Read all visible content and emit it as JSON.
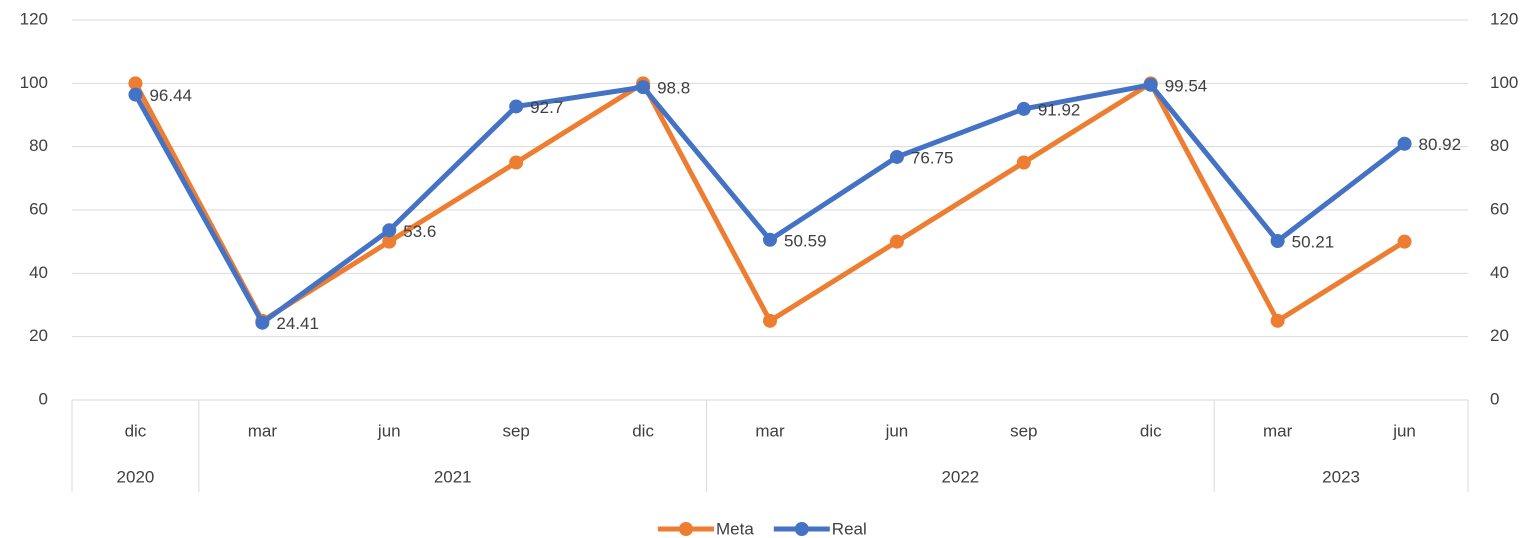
{
  "chart_data": {
    "type": "line",
    "categories": [
      "dic",
      "mar",
      "jun",
      "sep",
      "dic",
      "mar",
      "jun",
      "sep",
      "dic",
      "mar",
      "jun"
    ],
    "groups": [
      {
        "name": "2020",
        "count": 1
      },
      {
        "name": "2021",
        "count": 4
      },
      {
        "name": "2022",
        "count": 4
      },
      {
        "name": "2023",
        "count": 2
      }
    ],
    "series": [
      {
        "name": "Meta",
        "color": "#ed7d31",
        "values": [
          100,
          25,
          50,
          75,
          100,
          25,
          50,
          75,
          100,
          25,
          50
        ]
      },
      {
        "name": "Real",
        "color": "#4472c4",
        "values": [
          96.44,
          24.41,
          53.6,
          92.7,
          98.8,
          50.59,
          76.75,
          91.92,
          99.54,
          50.21,
          80.92
        ],
        "data_labels": true
      }
    ],
    "ylim": [
      0,
      120
    ],
    "yticks": [
      0,
      20,
      40,
      60,
      80,
      100,
      120
    ],
    "y2lim": [
      0,
      120
    ],
    "y2ticks": [
      0,
      20,
      40,
      60,
      80,
      100,
      120
    ],
    "grid": true,
    "legend": "bottom"
  }
}
